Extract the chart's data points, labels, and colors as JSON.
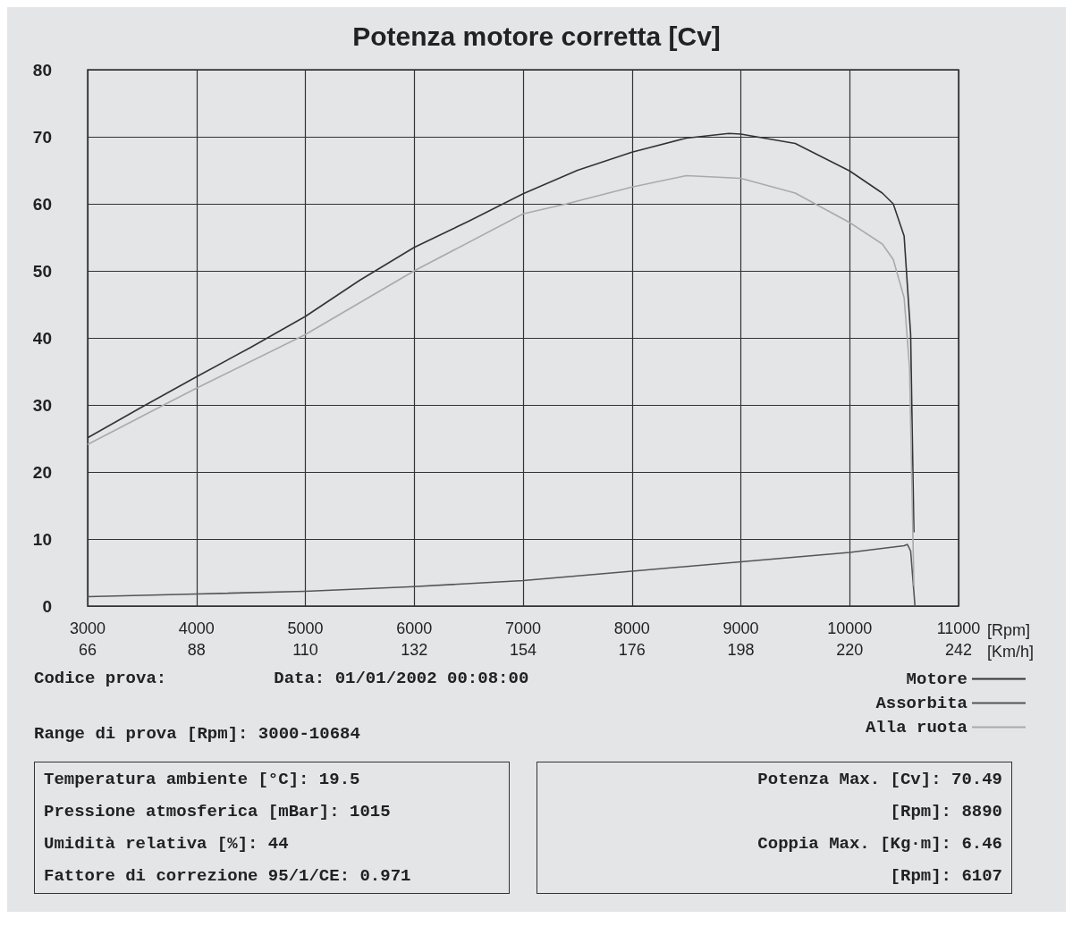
{
  "chart_data": {
    "type": "line",
    "title": "Potenza motore corretta [Cv]",
    "xlabel": "[Rpm]",
    "x2label": "[Km/h]",
    "xlim": [
      3000,
      11000
    ],
    "xticks": [
      3000,
      4000,
      5000,
      6000,
      7000,
      8000,
      9000,
      10000,
      11000
    ],
    "x2lim": [
      66,
      242
    ],
    "x2ticks": [
      66,
      88,
      110,
      132,
      154,
      176,
      198,
      220,
      242
    ],
    "ylim": [
      0,
      80
    ],
    "yticks": [
      0,
      10,
      20,
      30,
      40,
      50,
      60,
      70,
      80
    ],
    "grid": true,
    "legend": "bottom right",
    "marker": "none",
    "line_style": "solid",
    "series": [
      {
        "name": "Motore",
        "color": "#333333",
        "x": [
          3000,
          3500,
          4000,
          4500,
          5000,
          5500,
          6000,
          6500,
          7000,
          7500,
          8000,
          8500,
          8890,
          9000,
          9500,
          10000,
          10300,
          10400,
          10500,
          10560,
          10590
        ],
        "values": [
          25.1,
          29.7,
          34.2,
          38.6,
          43.2,
          48.6,
          53.5,
          57.4,
          61.5,
          65,
          67.7,
          69.8,
          70.5,
          70.4,
          69,
          64.9,
          61.6,
          60,
          55.2,
          40.5,
          11
        ]
      },
      {
        "name": "Assorbita",
        "color": "#555555",
        "x": [
          3000,
          4000,
          5000,
          6000,
          7000,
          8000,
          9000,
          10000,
          10500,
          10530,
          10560,
          10600
        ],
        "values": [
          1.4,
          1.8,
          2.2,
          2.9,
          3.8,
          5.2,
          6.6,
          8,
          9,
          9.2,
          8.2,
          0
        ]
      },
      {
        "name": "Alla ruota",
        "color": "#aaaaaa",
        "x": [
          3000,
          3700,
          4000,
          5000,
          6000,
          7000,
          7400,
          8000,
          8500,
          9000,
          9500,
          10000,
          10300,
          10400,
          10500,
          10550,
          10590
        ],
        "values": [
          24.1,
          30,
          32.5,
          40.5,
          50,
          58.5,
          60,
          62.5,
          64.2,
          63.8,
          61.6,
          57.2,
          54,
          51.7,
          46,
          35.5,
          3
        ]
      }
    ],
    "annotations": [
      "Codice prova:",
      "Data: 01/01/2002 00:08:00",
      "Range di prova [Rpm]: 3000-10684",
      "Temperatura ambiente [°C]: 19.5",
      "Pressione atmosferica [mBar]: 1015",
      "Umidità relativa [%]: 44",
      "Fattore di correzione 95/1/CE: 0.971",
      "Potenza Max. [Cv]: 70.49",
      "[Rpm]: 8890",
      "Coppia Max. [Kg·m]: 6.46",
      "[Rpm]: 6107"
    ]
  }
}
